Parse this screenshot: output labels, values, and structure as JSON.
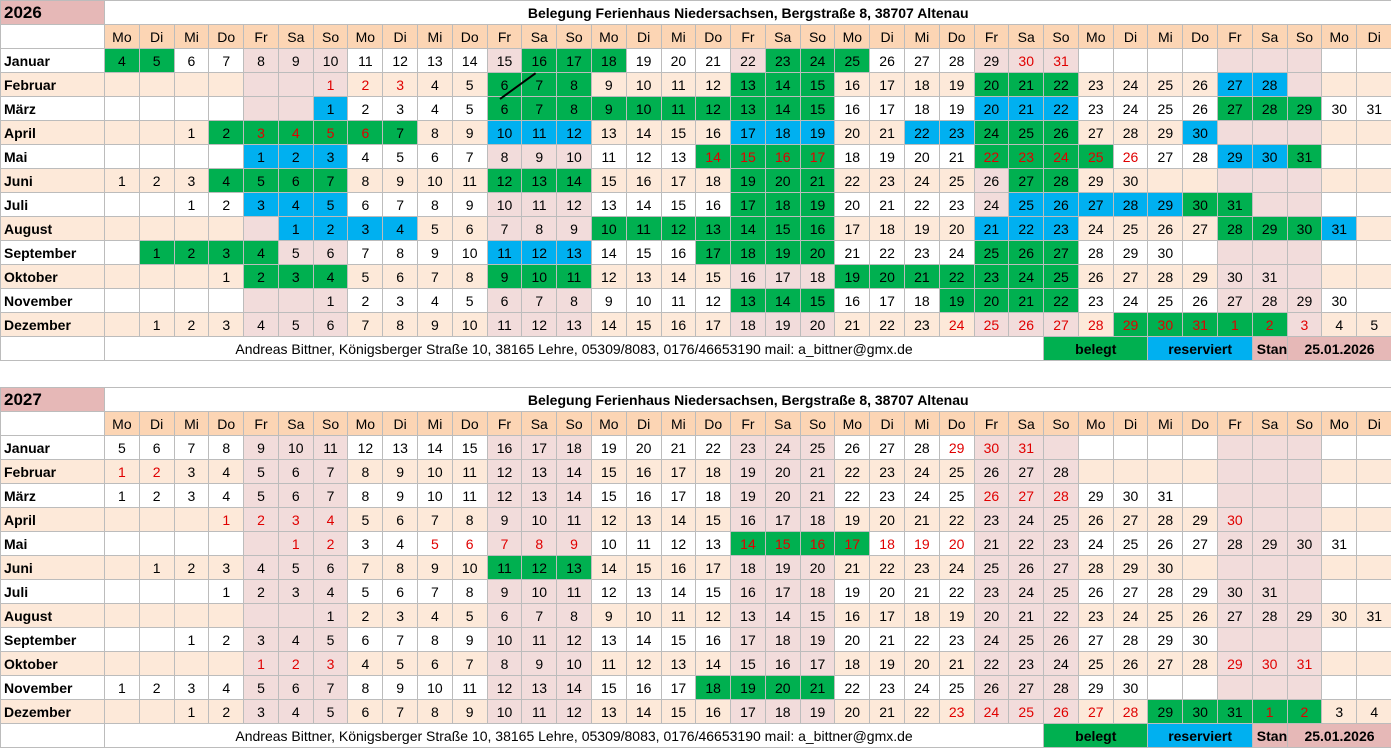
{
  "title": "Belegung Ferienhaus Niedersachsen, Bergstraße 8, 38707 Altenau",
  "weekday_pattern": [
    "Mo",
    "Di",
    "Mi",
    "Do",
    "Fr",
    "Sa",
    "So"
  ],
  "footer": {
    "contact": "Andreas Bittner, Königsberger Straße 10, 38165 Lehre, 05309/8083, 0176/46653190  mail: a_bittner@gmx.de",
    "legend_booked": "belegt",
    "legend_reserved": "reserviert",
    "stand_label": "Stand:",
    "stand_date": "25.01.2026"
  },
  "colors": {
    "booked": "#00b050",
    "reserved": "#00b0f0",
    "header": "#fcd5b4",
    "weekend": "#f2dcdb",
    "year": "#e6b8b7"
  },
  "years": [
    {
      "year": "2026",
      "months": [
        {
          "name": "Januar",
          "offset": -3,
          "days": 31,
          "b": [
            "1:5",
            "16:18",
            "23:25"
          ],
          "r": [],
          "red": [
            "30:31"
          ]
        },
        {
          "name": "Februar",
          "offset": 6,
          "days": 28,
          "b": [
            "6:8",
            "13:15",
            "20:22"
          ],
          "r": [
            "27:28"
          ],
          "red": [
            "1:3"
          ]
        },
        {
          "name": "März",
          "offset": 6,
          "days": 31,
          "b": [
            "6:15",
            "27:29"
          ],
          "r": [
            "1",
            "20:22"
          ],
          "red": []
        },
        {
          "name": "April",
          "offset": 2,
          "days": 30,
          "b": [
            "2:7",
            "24:26"
          ],
          "r": [
            "10:12",
            "17:19",
            "22:23",
            "30"
          ],
          "red": [
            "3:6"
          ]
        },
        {
          "name": "Mai",
          "offset": 4,
          "days": 31,
          "b": [
            "14:17",
            "22:25",
            "31"
          ],
          "r": [
            "1:3",
            "29:30"
          ],
          "red": [
            "14:17",
            "22:26"
          ]
        },
        {
          "name": "Juni",
          "offset": 0,
          "days": 30,
          "b": [
            "4:7",
            "12:14",
            "19:21",
            "27:28"
          ],
          "r": [],
          "red": []
        },
        {
          "name": "Juli",
          "offset": 2,
          "days": 31,
          "b": [
            "17:19",
            "30:31"
          ],
          "r": [
            "3:5",
            "25:29"
          ],
          "red": []
        },
        {
          "name": "August",
          "offset": 5,
          "days": 31,
          "b": [
            "10:16",
            "28:30"
          ],
          "r": [
            "1:4",
            "21:23",
            "31"
          ],
          "red": []
        },
        {
          "name": "September",
          "offset": 1,
          "days": 30,
          "b": [
            "1:4",
            "17:20",
            "25:27"
          ],
          "r": [
            "11:13"
          ],
          "red": []
        },
        {
          "name": "Oktober",
          "offset": 3,
          "days": 31,
          "b": [
            "2:4",
            "9:11",
            "19:25"
          ],
          "r": [],
          "red": []
        },
        {
          "name": "November",
          "offset": 6,
          "days": 30,
          "b": [
            "13:15",
            "19:22"
          ],
          "r": [],
          "red": []
        },
        {
          "name": "Dezember",
          "offset": 1,
          "days": 31,
          "tail": 5,
          "b": [
            "29",
            "30",
            "31",
            "t1",
            "t2"
          ],
          "r": [],
          "red": [
            "24:31",
            "t1:t3"
          ]
        }
      ]
    },
    {
      "year": "2027",
      "months": [
        {
          "name": "Januar",
          "offset": -4,
          "days": 31,
          "b": [
            "-29:-31",
            "1:2"
          ],
          "r": [],
          "red": [
            "29:31"
          ]
        },
        {
          "name": "Februar",
          "offset": 0,
          "days": 28,
          "b": [],
          "r": [],
          "red": [
            "1:2"
          ]
        },
        {
          "name": "März",
          "offset": 0,
          "days": 31,
          "b": [],
          "r": [],
          "red": [
            "26:28"
          ]
        },
        {
          "name": "April",
          "offset": 3,
          "days": 30,
          "b": [],
          "r": [],
          "red": [
            "1:4",
            "30"
          ]
        },
        {
          "name": "Mai",
          "offset": 5,
          "days": 31,
          "b": [
            "14:17"
          ],
          "r": [],
          "red": [
            "1:2",
            "5:9",
            "14:20"
          ]
        },
        {
          "name": "Juni",
          "offset": 1,
          "days": 30,
          "b": [
            "11:13"
          ],
          "r": [],
          "red": []
        },
        {
          "name": "Juli",
          "offset": 3,
          "days": 31,
          "b": [],
          "r": [],
          "red": []
        },
        {
          "name": "August",
          "offset": 6,
          "days": 31,
          "b": [],
          "r": [],
          "red": []
        },
        {
          "name": "September",
          "offset": 2,
          "days": 30,
          "b": [],
          "r": [],
          "red": []
        },
        {
          "name": "Oktober",
          "offset": 4,
          "days": 31,
          "b": [],
          "r": [],
          "red": [
            "1:3",
            "29:31"
          ]
        },
        {
          "name": "November",
          "offset": 0,
          "days": 30,
          "b": [
            "18:21"
          ],
          "r": [],
          "red": []
        },
        {
          "name": "Dezember",
          "offset": 2,
          "days": 31,
          "tail": 4,
          "b": [
            "29:31",
            "t1:t2"
          ],
          "r": [],
          "red": [
            "23:28",
            "t1:t2"
          ]
        }
      ]
    }
  ]
}
